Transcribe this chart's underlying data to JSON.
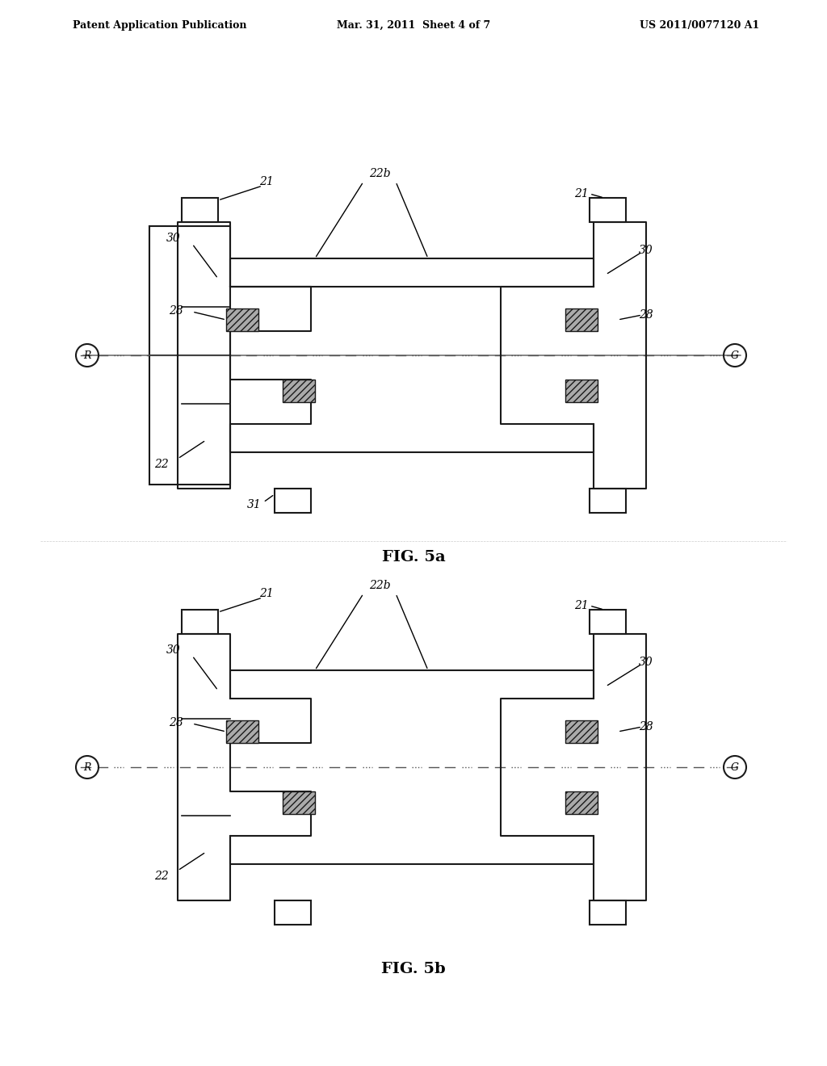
{
  "title_left": "Patent Application Publication",
  "title_center": "Mar. 31, 2011  Sheet 4 of 7",
  "title_right": "US 2011/0077120 A1",
  "fig5a_label": "FIG. 5a",
  "fig5b_label": "FIG. 5b",
  "background_color": "#ffffff",
  "line_color": "#1a1a1a",
  "hatch_color": "#888888",
  "centerline_color": "#555555"
}
